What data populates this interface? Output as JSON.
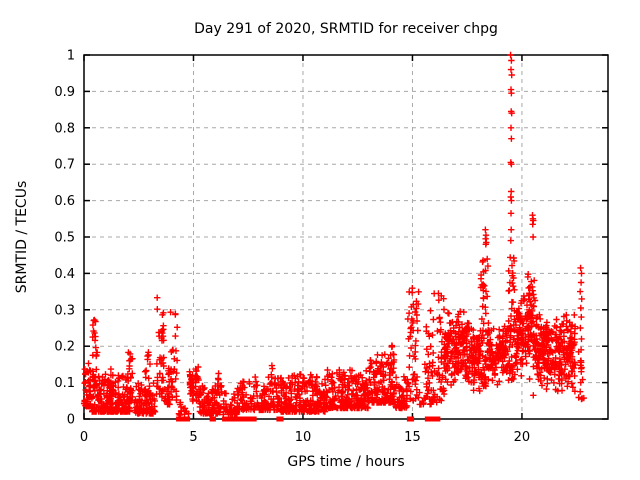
{
  "window": {
    "background": "#ffffff"
  },
  "colors": {
    "marker": "#ff0000",
    "grid": "#a8a8a8",
    "border": "#000000",
    "text": "#000000",
    "background": "#ffffff"
  },
  "chart_data": {
    "type": "scatter",
    "title": "Day 291 of 2020, SRMTID for receiver chpg",
    "xlabel": "GPS time / hours",
    "ylabel": "SRMTID / TECUs",
    "xlim": [
      0,
      23.93
    ],
    "ylim": [
      0,
      1
    ],
    "xticks": [
      0,
      5,
      10,
      15,
      20
    ],
    "xtick_labels": [
      "0",
      "5",
      "10",
      "15",
      "20"
    ],
    "yticks": [
      0,
      0.1,
      0.2,
      0.3,
      0.4,
      0.5,
      0.6,
      0.7,
      0.8,
      0.9,
      1
    ],
    "ytick_labels": [
      "0",
      "0.1",
      "0.2",
      "0.3",
      "0.4",
      "0.5",
      "0.6",
      "0.7",
      "0.8",
      "0.9",
      "1"
    ],
    "grid": "dashed-both-axes",
    "legend": "none",
    "marker": "plus",
    "marker_color": "#ff0000",
    "series_name": "SRMTID",
    "cluster_format": [
      "hour_start",
      "hour_end",
      "count",
      "y_min",
      "y_max",
      "shape"
    ],
    "clusters": [
      [
        0.0,
        0.35,
        45,
        0.035,
        0.16,
        "low"
      ],
      [
        0.38,
        0.62,
        26,
        0.06,
        0.355,
        "spread"
      ],
      [
        0.35,
        2.1,
        230,
        0.02,
        0.125,
        "low"
      ],
      [
        1.05,
        1.35,
        18,
        0.05,
        0.165,
        "low"
      ],
      [
        1.95,
        2.25,
        22,
        0.05,
        0.19,
        "spread"
      ],
      [
        2.3,
        3.25,
        90,
        0.015,
        0.1,
        "low"
      ],
      [
        2.78,
        3.05,
        14,
        0.06,
        0.26,
        "spread"
      ],
      [
        3.3,
        3.65,
        40,
        0.06,
        0.335,
        "spread"
      ],
      [
        3.65,
        3.95,
        25,
        0.04,
        0.15,
        "low"
      ],
      [
        3.95,
        4.28,
        28,
        0.05,
        0.3,
        "spread"
      ],
      [
        4.3,
        4.78,
        16,
        0.01,
        0.06,
        "low"
      ],
      [
        4.82,
        5.25,
        48,
        0.04,
        0.155,
        "mid"
      ],
      [
        5.25,
        6.3,
        95,
        0.015,
        0.1,
        "low"
      ],
      [
        5.95,
        6.15,
        8,
        0.08,
        0.145,
        "low"
      ],
      [
        6.35,
        7.0,
        40,
        0.012,
        0.075,
        "low"
      ],
      [
        7.0,
        7.62,
        50,
        0.025,
        0.11,
        "low"
      ],
      [
        7.62,
        9.0,
        115,
        0.025,
        0.12,
        "low"
      ],
      [
        8.55,
        8.68,
        3,
        0.12,
        0.15,
        "spread"
      ],
      [
        9.0,
        11.0,
        230,
        0.02,
        0.125,
        "low"
      ],
      [
        11.0,
        13.0,
        230,
        0.03,
        0.135,
        "low"
      ],
      [
        13.0,
        14.2,
        140,
        0.045,
        0.18,
        "low"
      ],
      [
        13.9,
        14.15,
        10,
        0.12,
        0.21,
        "spread"
      ],
      [
        14.2,
        14.78,
        55,
        0.03,
        0.12,
        "low"
      ],
      [
        14.78,
        15.28,
        50,
        0.05,
        0.37,
        "spread"
      ],
      [
        15.3,
        15.55,
        9,
        0.04,
        0.14,
        "low"
      ],
      [
        15.56,
        15.78,
        20,
        0.03,
        0.26,
        "spread"
      ],
      [
        15.78,
        16.45,
        60,
        0.04,
        0.35,
        "spread"
      ],
      [
        16.45,
        17.6,
        170,
        0.08,
        0.3,
        "mid"
      ],
      [
        17.6,
        18.1,
        75,
        0.07,
        0.26,
        "mid"
      ],
      [
        18.1,
        18.45,
        60,
        0.09,
        0.47,
        "spread"
      ],
      [
        18.45,
        19.35,
        115,
        0.07,
        0.28,
        "mid"
      ],
      [
        19.38,
        19.68,
        55,
        0.1,
        0.45,
        "spread"
      ],
      [
        19.7,
        20.18,
        75,
        0.11,
        0.35,
        "mid"
      ],
      [
        20.2,
        20.6,
        75,
        0.09,
        0.42,
        "mid"
      ],
      [
        20.6,
        21.1,
        85,
        0.08,
        0.3,
        "mid"
      ],
      [
        21.1,
        22.45,
        190,
        0.07,
        0.3,
        "mid"
      ],
      [
        22.58,
        22.85,
        10,
        0.05,
        0.25,
        "spread"
      ]
    ],
    "outlier_format": [
      "hour",
      "value"
    ],
    "outliers": [
      [
        19.48,
        1.0
      ],
      [
        19.52,
        0.985
      ],
      [
        19.5,
        0.96
      ],
      [
        19.53,
        0.945
      ],
      [
        19.5,
        0.905
      ],
      [
        19.52,
        0.895
      ],
      [
        19.51,
        0.845
      ],
      [
        19.53,
        0.84
      ],
      [
        19.5,
        0.8
      ],
      [
        19.52,
        0.77
      ],
      [
        19.49,
        0.705
      ],
      [
        19.52,
        0.7
      ],
      [
        19.51,
        0.625
      ],
      [
        19.49,
        0.61
      ],
      [
        19.52,
        0.6
      ],
      [
        19.5,
        0.565
      ],
      [
        19.51,
        0.52
      ],
      [
        19.49,
        0.49
      ],
      [
        18.33,
        0.52
      ],
      [
        18.36,
        0.505
      ],
      [
        18.34,
        0.495
      ],
      [
        18.37,
        0.485
      ],
      [
        18.35,
        0.48
      ],
      [
        20.48,
        0.56
      ],
      [
        20.5,
        0.55
      ],
      [
        20.52,
        0.545
      ],
      [
        20.49,
        0.535
      ],
      [
        20.51,
        0.5
      ],
      [
        20.52,
        0.065
      ],
      [
        22.68,
        0.415
      ],
      [
        22.72,
        0.4
      ],
      [
        22.7,
        0.375
      ],
      [
        22.66,
        0.35
      ],
      [
        22.73,
        0.33
      ],
      [
        22.69,
        0.305
      ],
      [
        22.71,
        0.28
      ],
      [
        22.67,
        0.25
      ],
      [
        22.72,
        0.22
      ],
      [
        22.7,
        0.19
      ],
      [
        22.68,
        0.16
      ],
      [
        22.71,
        0.13
      ],
      [
        22.69,
        0.1
      ],
      [
        22.66,
        0.075
      ],
      [
        22.72,
        0.055
      ]
    ],
    "zero_run_format": [
      "hour_start",
      "hour_end"
    ],
    "zero_runs": [
      [
        4.32,
        4.55
      ],
      [
        4.6,
        4.73
      ],
      [
        5.85,
        5.91
      ],
      [
        6.42,
        6.6
      ],
      [
        6.68,
        6.87
      ],
      [
        6.97,
        7.5
      ],
      [
        7.68,
        7.77
      ],
      [
        8.9,
        9.0
      ],
      [
        14.86,
        14.96
      ],
      [
        15.68,
        15.93
      ],
      [
        16.03,
        16.16
      ]
    ]
  }
}
